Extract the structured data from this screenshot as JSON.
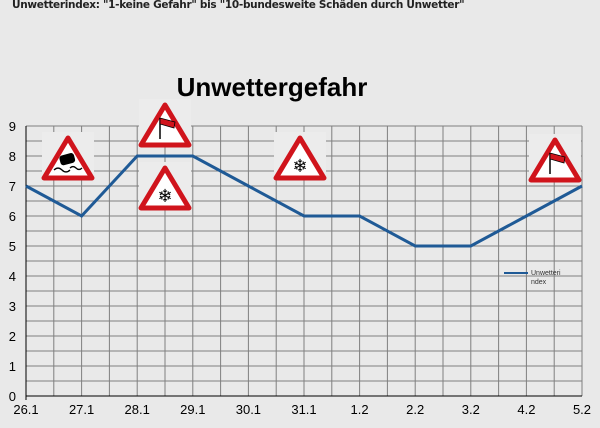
{
  "caption": "Unwetterindex: \"1-keine Gefahr\" bis \"10-bundesweite Schäden durch Unwetter\"",
  "chart_data": {
    "type": "line",
    "title": "Unwettergefahr",
    "categories": [
      "26.1",
      "27.1",
      "28.1",
      "29.1",
      "30.1",
      "31.1",
      "1.2",
      "2.2",
      "3.2",
      "4.2",
      "5.2"
    ],
    "series": [
      {
        "name": "Unwetteri ndex",
        "values": [
          7,
          6,
          8,
          8,
          7,
          6,
          6,
          5,
          5,
          6,
          7
        ],
        "color": "#1f5a96"
      }
    ],
    "ylim": [
      0,
      9
    ],
    "yticks": [
      0,
      1,
      2,
      3,
      4,
      5,
      6,
      7,
      8,
      9
    ],
    "grid": true,
    "legend": "right",
    "annotations": [
      {
        "icon": "slippery-road-sign-icon",
        "at": "27.1"
      },
      {
        "icon": "wind-sign-icon",
        "at": "28.1-29.1"
      },
      {
        "icon": "snow-sign-icon",
        "at": "28.1-29.1"
      },
      {
        "icon": "snow-sign-icon",
        "at": "30.1-31.1"
      },
      {
        "icon": "wind-sign-icon",
        "at": "4.2-5.2"
      }
    ]
  }
}
